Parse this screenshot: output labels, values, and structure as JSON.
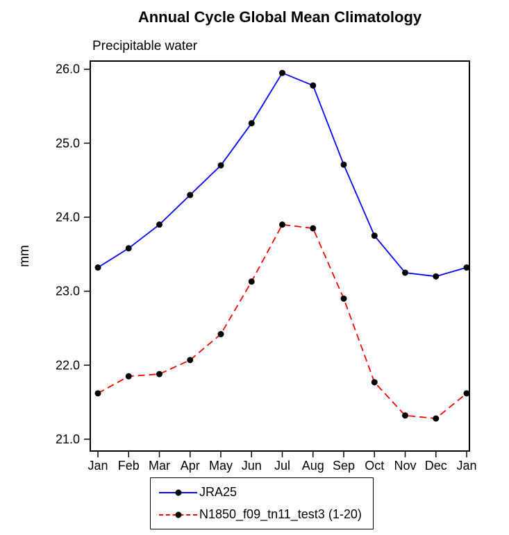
{
  "title": "Annual Cycle Global Mean Climatology",
  "subtitle": "Precipitable water",
  "chart_data": {
    "type": "line",
    "title": "Annual Cycle Global Mean Climatology",
    "subtitle": "Precipitable water",
    "xlabel": "",
    "ylabel": "mm",
    "categories": [
      "Jan",
      "Feb",
      "Mar",
      "Apr",
      "May",
      "Jun",
      "Jul",
      "Aug",
      "Sep",
      "Oct",
      "Nov",
      "Dec",
      "Jan"
    ],
    "series": [
      {
        "name": "JRA25",
        "color": "#0000ff",
        "line_style": "solid",
        "marker": "filled-circle",
        "marker_color": "#000000",
        "values": [
          23.32,
          23.58,
          23.9,
          24.3,
          24.7,
          25.27,
          25.95,
          25.78,
          24.71,
          23.75,
          23.25,
          23.2,
          23.32
        ]
      },
      {
        "name": "N1850_f09_tn11_test3 (1-20)",
        "color": "#ff0000",
        "line_style": "dashed",
        "marker": "filled-circle",
        "marker_color": "#000000",
        "values": [
          21.62,
          21.85,
          21.88,
          22.07,
          22.42,
          23.13,
          23.9,
          23.85,
          22.9,
          21.77,
          21.32,
          21.28,
          21.62
        ]
      }
    ],
    "ylim": [
      20.84,
      26.11
    ],
    "yticks": [
      {
        "value": 21,
        "label": "21.0"
      },
      {
        "value": 22,
        "label": "22.0"
      },
      {
        "value": 23,
        "label": "23.0"
      },
      {
        "value": 24,
        "label": "24.0"
      },
      {
        "value": 25,
        "label": "25.0"
      },
      {
        "value": 26,
        "label": "26.0"
      }
    ],
    "grid": false,
    "legend_position": "bottom"
  },
  "legend": {
    "entries": [
      {
        "label": "JRA25"
      },
      {
        "label": "N1850_f09_tn11_test3 (1-20)"
      }
    ]
  }
}
